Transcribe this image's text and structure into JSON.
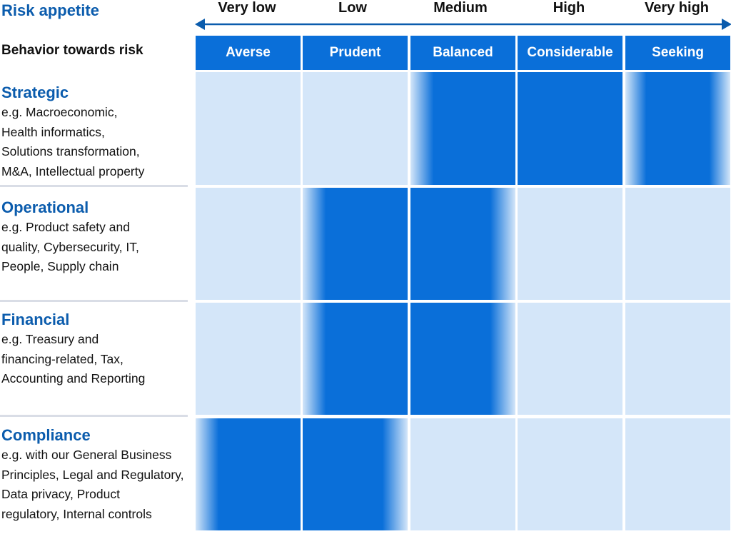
{
  "title": "Risk appetite",
  "scale": [
    "Very low",
    "Low",
    "Medium",
    "High",
    "Very high"
  ],
  "behavior_label": "Behavior towards risk",
  "behaviors": [
    "Averse",
    "Prudent",
    "Balanced",
    "Considerable",
    "Seeking"
  ],
  "colors": {
    "brand": "#0b5cad",
    "header_fill": "#0a6fd9",
    "active": "#0a6fd9",
    "inactive": "#d4e6f9"
  },
  "rows": [
    {
      "title": "Strategic",
      "desc_lines": [
        "e.g. Macroeconomic,",
        "Health informatics,",
        "Solutions transformation,",
        "M&A, Intellectual property"
      ],
      "levels": [
        "none",
        "none",
        "fade-left",
        "full",
        "fade-both"
      ]
    },
    {
      "title": "Operational",
      "desc_lines": [
        "e.g. Product safety and",
        "quality, Cybersecurity, IT,",
        "People, Supply chain"
      ],
      "levels": [
        "none",
        "fade-left",
        "fade-right",
        "none",
        "none"
      ]
    },
    {
      "title": "Financial",
      "desc_lines": [
        "e.g. Treasury and",
        "financing-related, Tax,",
        "Accounting and Reporting"
      ],
      "levels": [
        "none",
        "fade-left",
        "fade-right",
        "none",
        "none"
      ]
    },
    {
      "title": "Compliance",
      "desc_lines": [
        "e.g. with our General Business",
        "Principles, Legal and Regulatory,",
        "Data privacy, Product",
        "regulatory, Internal controls"
      ],
      "levels": [
        "fade-left",
        "fade-right",
        "none",
        "none",
        "none"
      ]
    }
  ]
}
